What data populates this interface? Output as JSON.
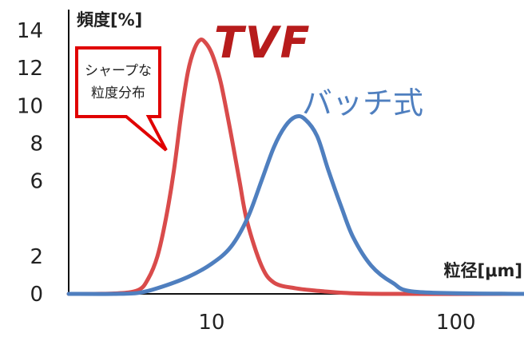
{
  "logo": {
    "text": "TVF",
    "color": "#b71c1c"
  },
  "chart_data": {
    "type": "line",
    "x_scale": "log",
    "ylabel": "頻度[%]",
    "xlabel": "粒径[μm]",
    "xlim": [
      2.6,
      190
    ],
    "ylim": [
      0,
      14
    ],
    "x_ticks": [
      {
        "value": 10,
        "label": "10"
      },
      {
        "value": 100,
        "label": "100"
      }
    ],
    "y_ticks": [
      {
        "value": 0,
        "label": "0"
      },
      {
        "value": 2,
        "label": "2"
      },
      {
        "value": 6,
        "label": "6"
      },
      {
        "value": 8,
        "label": "8"
      },
      {
        "value": 10,
        "label": "10"
      },
      {
        "value": 12,
        "label": "12"
      },
      {
        "value": 14,
        "label": "14"
      }
    ],
    "series": [
      {
        "key": "sharp",
        "color": "#d94b4b",
        "x": [
          2.6,
          4.0,
          5.0,
          5.5,
          6.0,
          6.5,
          7.0,
          7.5,
          8.0,
          8.5,
          9.0,
          9.5,
          10.0,
          10.5,
          11.0,
          12.0,
          13.0,
          14.0,
          16.0,
          18.0,
          22.0,
          28.0,
          35.0,
          50.0,
          190.0
        ],
        "y": [
          0,
          0.02,
          0.2,
          0.8,
          2.0,
          4.0,
          6.5,
          9.5,
          11.8,
          13.0,
          13.5,
          13.3,
          12.8,
          12.0,
          11.0,
          8.5,
          6.0,
          3.8,
          1.5,
          0.6,
          0.3,
          0.15,
          0.05,
          0,
          0
        ]
      },
      {
        "key": "batch",
        "name": "バッチ式",
        "color": "#4f7fbf",
        "x": [
          2.6,
          4.0,
          5.0,
          6.0,
          8.0,
          10.0,
          12.0,
          14.0,
          16.0,
          18.0,
          20.0,
          22.0,
          24.0,
          27.0,
          30.0,
          34.0,
          38.0,
          45.0,
          55.0,
          70.0,
          190.0
        ],
        "y": [
          0,
          0,
          0.05,
          0.3,
          0.9,
          1.6,
          2.5,
          4.0,
          6.0,
          7.8,
          8.9,
          9.4,
          9.3,
          8.4,
          6.6,
          4.6,
          3.0,
          1.5,
          0.6,
          0.1,
          0
        ]
      }
    ],
    "annotations": [
      {
        "text_lines": [
          "シャープな",
          "粒度分布"
        ],
        "type": "callout",
        "target_series": "sharp",
        "border_color": "#e00000"
      }
    ]
  }
}
